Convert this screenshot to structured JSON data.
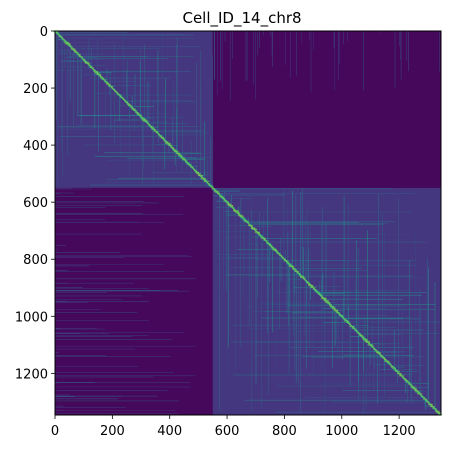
{
  "chart_data": {
    "type": "heatmap",
    "title": "Cell_ID_14_chr8",
    "xlabel": "",
    "ylabel": "",
    "n_bins": 1346,
    "xlim": [
      0,
      1346
    ],
    "ylim": [
      1346,
      0
    ],
    "x_ticks": [
      0,
      200,
      400,
      600,
      800,
      1000,
      1200
    ],
    "y_ticks": [
      0,
      200,
      400,
      600,
      800,
      1000,
      1200
    ],
    "colormap": "viridis",
    "colormap_stops": [
      "#440154",
      "#482878",
      "#3e4989",
      "#31688e",
      "#26828e",
      "#1f9e89",
      "#35b779",
      "#6ece58",
      "#b5de2b",
      "#fde725"
    ],
    "compartment_boundary": 550,
    "blocks": [
      {
        "rows": [
          0,
          550
        ],
        "cols": [
          0,
          550
        ],
        "level": 0.16
      },
      {
        "rows": [
          0,
          550
        ],
        "cols": [
          550,
          1346
        ],
        "level": 0.02
      },
      {
        "rows": [
          550,
          1346
        ],
        "cols": [
          0,
          550
        ],
        "level": 0.02
      },
      {
        "rows": [
          550,
          1346
        ],
        "cols": [
          550,
          1346
        ],
        "level": 0.16
      }
    ]
  }
}
